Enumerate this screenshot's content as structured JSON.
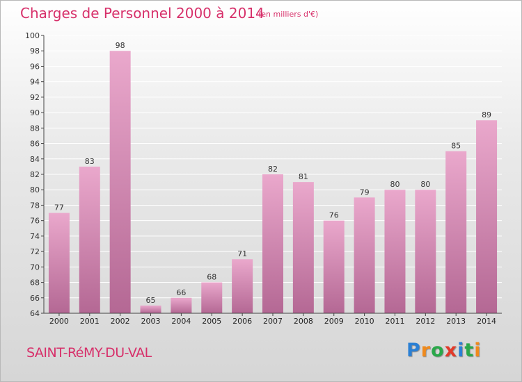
{
  "title": "Charges de Personnel 2000 à 2014",
  "unit_note": "(en milliers d'€)",
  "commune": "SAINT-RéMY-DU-VAL",
  "logo": {
    "letters": [
      "P",
      "r",
      "o",
      "x",
      "i",
      "t",
      "i"
    ],
    "colors": [
      "#2a7fd4",
      "#f08a1c",
      "#2aa84a",
      "#e23a2a",
      "#2a7fd4",
      "#2aa84a",
      "#f08a1c"
    ]
  },
  "colors": {
    "bar_light": "#eaa8cc",
    "bar_dark": "#b46894",
    "title": "#d7306a"
  },
  "chart_data": {
    "type": "bar",
    "categories": [
      "2000",
      "2001",
      "2002",
      "2003",
      "2004",
      "2005",
      "2006",
      "2007",
      "2008",
      "2009",
      "2010",
      "2011",
      "2012",
      "2013",
      "2014"
    ],
    "values": [
      77,
      83,
      98,
      65,
      66,
      68,
      71,
      82,
      81,
      76,
      79,
      80,
      80,
      85,
      89
    ],
    "ylim": [
      64,
      100
    ],
    "yticks": [
      64,
      66,
      68,
      70,
      72,
      74,
      76,
      78,
      80,
      82,
      84,
      86,
      88,
      90,
      92,
      94,
      96,
      98,
      100
    ],
    "grid": true,
    "legend": "none"
  }
}
